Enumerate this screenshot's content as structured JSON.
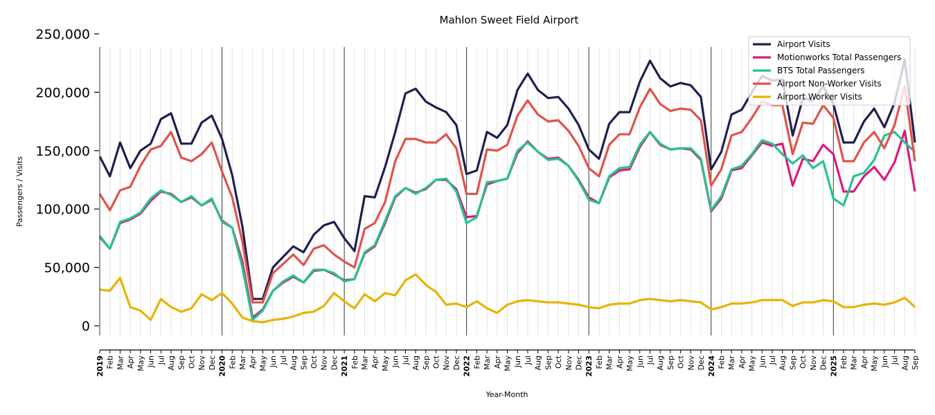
{
  "chart_data": {
    "type": "line",
    "title": "Mahlon Sweet Field Airport",
    "xlabel": "Year-Month",
    "ylabel": "Passengers / Visits",
    "ylim": [
      0,
      250000
    ],
    "yticks": [
      0,
      50000,
      100000,
      150000,
      200000,
      250000
    ],
    "ytick_labels": [
      "0",
      "50,000",
      "100,000",
      "150,000",
      "200,000",
      "250,000"
    ],
    "legend_position": "top-right",
    "grid": "vertical monthly gridlines, darker lines at each year start",
    "x_start": "2019-01",
    "x_count": 81,
    "years": [
      "2019",
      "2020",
      "2021",
      "2022",
      "2023",
      "2024",
      "2025"
    ],
    "months": [
      "Jan",
      "Feb",
      "Mar",
      "Apr",
      "May",
      "Jun",
      "Jul",
      "Aug",
      "Sep",
      "Oct",
      "Nov",
      "Dec"
    ],
    "series": [
      {
        "name": "Airport Visits",
        "color": "#1f1f4f",
        "values": [
          145000,
          128000,
          157000,
          135000,
          150000,
          156000,
          177000,
          182000,
          156000,
          156000,
          174000,
          180000,
          160000,
          129000,
          85000,
          23000,
          23000,
          50000,
          59000,
          68000,
          63000,
          78000,
          86000,
          89000,
          75000,
          64000,
          111000,
          110000,
          136000,
          166000,
          199000,
          203000,
          192000,
          187000,
          183000,
          172000,
          130000,
          133000,
          166000,
          161000,
          172000,
          202000,
          216000,
          202000,
          195000,
          196000,
          186000,
          172000,
          151000,
          143000,
          173000,
          183000,
          183000,
          209000,
          227000,
          212000,
          205000,
          208000,
          206000,
          196000,
          134000,
          149000,
          181000,
          185000,
          200000,
          214000,
          210000,
          211000,
          163000,
          195000,
          193000,
          205000,
          190000,
          157000,
          157000,
          175000,
          186000,
          170000,
          191000,
          228000,
          157000
        ]
      },
      {
        "name": "Motionworks Total Passengers",
        "color": "#d81b7f",
        "values": [
          76000,
          66000,
          88000,
          91000,
          96000,
          107000,
          115000,
          113000,
          106000,
          110000,
          103000,
          108000,
          90000,
          84000,
          55000,
          7000,
          14000,
          30000,
          37000,
          42000,
          37000,
          47000,
          48000,
          44000,
          39000,
          40000,
          62000,
          68000,
          88000,
          110000,
          118000,
          114000,
          117000,
          125000,
          125000,
          117000,
          93000,
          94000,
          121000,
          124000,
          126000,
          148000,
          158000,
          149000,
          143000,
          144000,
          137000,
          125000,
          110000,
          105000,
          127000,
          133000,
          134000,
          153000,
          166000,
          155000,
          151000,
          152000,
          151000,
          142000,
          98000,
          109000,
          133000,
          135000,
          146000,
          157000,
          154000,
          156000,
          120000,
          143000,
          141000,
          155000,
          147000,
          115000,
          115000,
          128000,
          136000,
          125000,
          140000,
          167000,
          115000
        ]
      },
      {
        "name": "BTS Total Passengers",
        "color": "#26c28f",
        "values": [
          77000,
          66000,
          89000,
          92000,
          97000,
          109000,
          116000,
          112000,
          106000,
          111000,
          103000,
          109000,
          89000,
          84000,
          50000,
          5000,
          13000,
          30000,
          38000,
          43000,
          37000,
          48000,
          48000,
          45000,
          38000,
          40000,
          63000,
          69000,
          90000,
          111000,
          118000,
          113000,
          118000,
          125000,
          126000,
          115000,
          88000,
          93000,
          123000,
          124000,
          126000,
          150000,
          157000,
          149000,
          142000,
          143000,
          137000,
          124000,
          108000,
          105000,
          128000,
          135000,
          136000,
          155000,
          166000,
          156000,
          151000,
          152000,
          152000,
          143000,
          99000,
          111000,
          134000,
          137000,
          147000,
          159000,
          156000,
          147000,
          139000,
          146000,
          135000,
          141000,
          109000,
          103000,
          128000,
          131000,
          142000,
          163000,
          166000,
          157000,
          149000
        ]
      },
      {
        "name": "Airport Non-Worker Visits",
        "color": "#e0524a",
        "values": [
          113000,
          99000,
          116000,
          119000,
          137000,
          151000,
          154000,
          166000,
          144000,
          141000,
          147000,
          157000,
          132000,
          110000,
          72000,
          20000,
          20000,
          45000,
          53000,
          61000,
          52000,
          66000,
          69000,
          61000,
          55000,
          50000,
          83000,
          88000,
          106000,
          141000,
          160000,
          160000,
          157000,
          157000,
          164000,
          152000,
          113000,
          113000,
          151000,
          150000,
          155000,
          180000,
          193000,
          181000,
          175000,
          176000,
          167000,
          154000,
          135000,
          128000,
          155000,
          164000,
          164000,
          187000,
          203000,
          190000,
          184000,
          186000,
          185000,
          176000,
          120000,
          134000,
          163000,
          166000,
          178000,
          192000,
          189000,
          189000,
          147000,
          174000,
          173000,
          189000,
          178000,
          141000,
          141000,
          157000,
          166000,
          152000,
          172000,
          205000,
          141000
        ]
      },
      {
        "name": "Airport Worker Visits",
        "color": "#e6b400",
        "values": [
          31000,
          30000,
          41000,
          16000,
          13000,
          5000,
          23000,
          16000,
          12000,
          15000,
          27000,
          22000,
          28000,
          19000,
          7000,
          4000,
          3000,
          5000,
          6000,
          8000,
          11000,
          12000,
          17000,
          28000,
          21000,
          15000,
          27000,
          21000,
          28000,
          26000,
          39000,
          44000,
          35000,
          29000,
          18000,
          19000,
          16000,
          21000,
          15000,
          11000,
          18000,
          21000,
          22000,
          21000,
          20000,
          20000,
          19000,
          18000,
          16000,
          15000,
          18000,
          19000,
          19000,
          22000,
          23000,
          22000,
          21000,
          22000,
          21000,
          20000,
          14000,
          16000,
          19000,
          19000,
          20000,
          22000,
          22000,
          22000,
          17000,
          20000,
          20000,
          22000,
          21000,
          16000,
          16000,
          18000,
          19000,
          18000,
          20000,
          24000,
          16000
        ]
      }
    ]
  }
}
